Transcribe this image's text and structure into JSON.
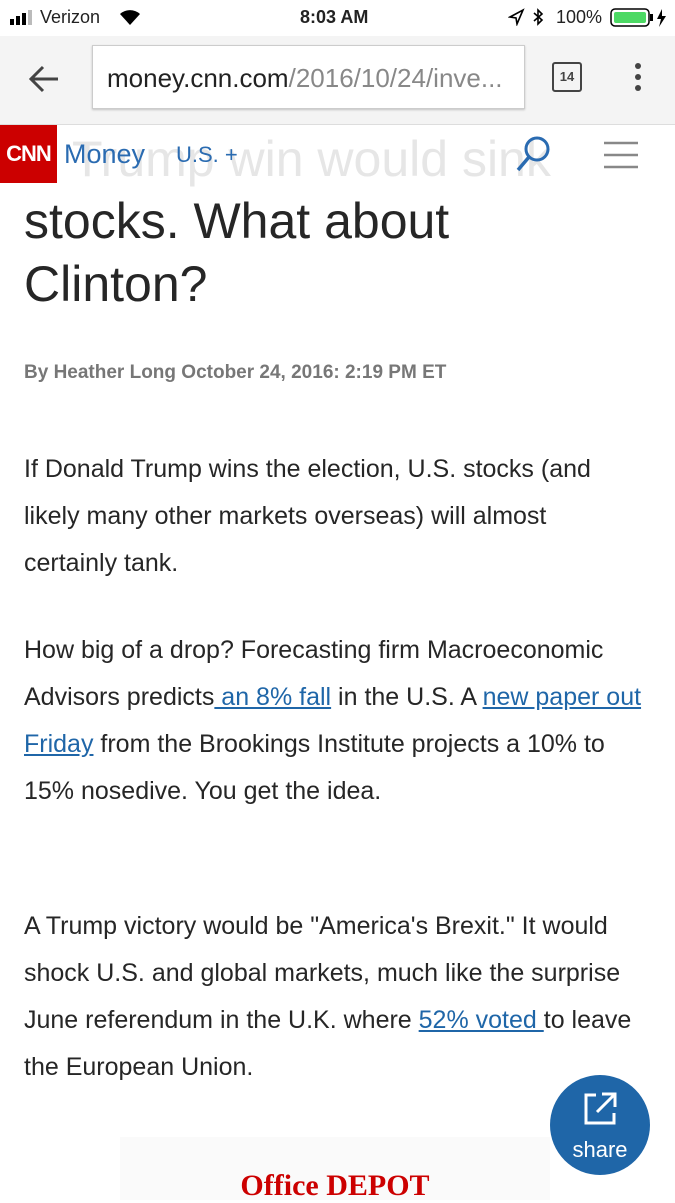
{
  "status_bar": {
    "carrier": "Verizon",
    "time": "8:03 AM",
    "battery": "100%"
  },
  "browser": {
    "url_host": "money.cnn.com",
    "url_path": "/2016/10/24/inve...",
    "tab_count": "14"
  },
  "site_nav": {
    "logo": "CNN",
    "section": "Money",
    "edition": "U.S. +"
  },
  "article": {
    "title_hidden": "Trump win would sink",
    "title_visible": "stocks. What about Clinton?",
    "byline": "By Heather Long October 24, 2016: 2:19 PM ET",
    "paragraphs": [
      [
        {
          "text": "If Donald Trump wins the election, U.S. stocks (and likely many other markets overseas) will almost certainly tank."
        }
      ],
      [
        {
          "text": "How big of a drop? Forecasting firm Macroeconomic Advisors predicts"
        },
        {
          "link": " an 8% fall"
        },
        {
          "text": " in the U.S. A "
        },
        {
          "link": "new paper out Friday"
        },
        {
          "text": " from the Brookings Institute projects a 10% to 15% nosedive. You get the idea."
        }
      ],
      [
        {
          "text": "A Trump victory would be \"America's Brexit.\" It would shock U.S. and global markets, much like the surprise June referendum in the U.K. where "
        },
        {
          "link": "52% voted "
        },
        {
          "text": "to leave the European Union."
        }
      ]
    ]
  },
  "share_button": {
    "label": "share"
  },
  "ad": {
    "brand": "Office DEPOT"
  }
}
